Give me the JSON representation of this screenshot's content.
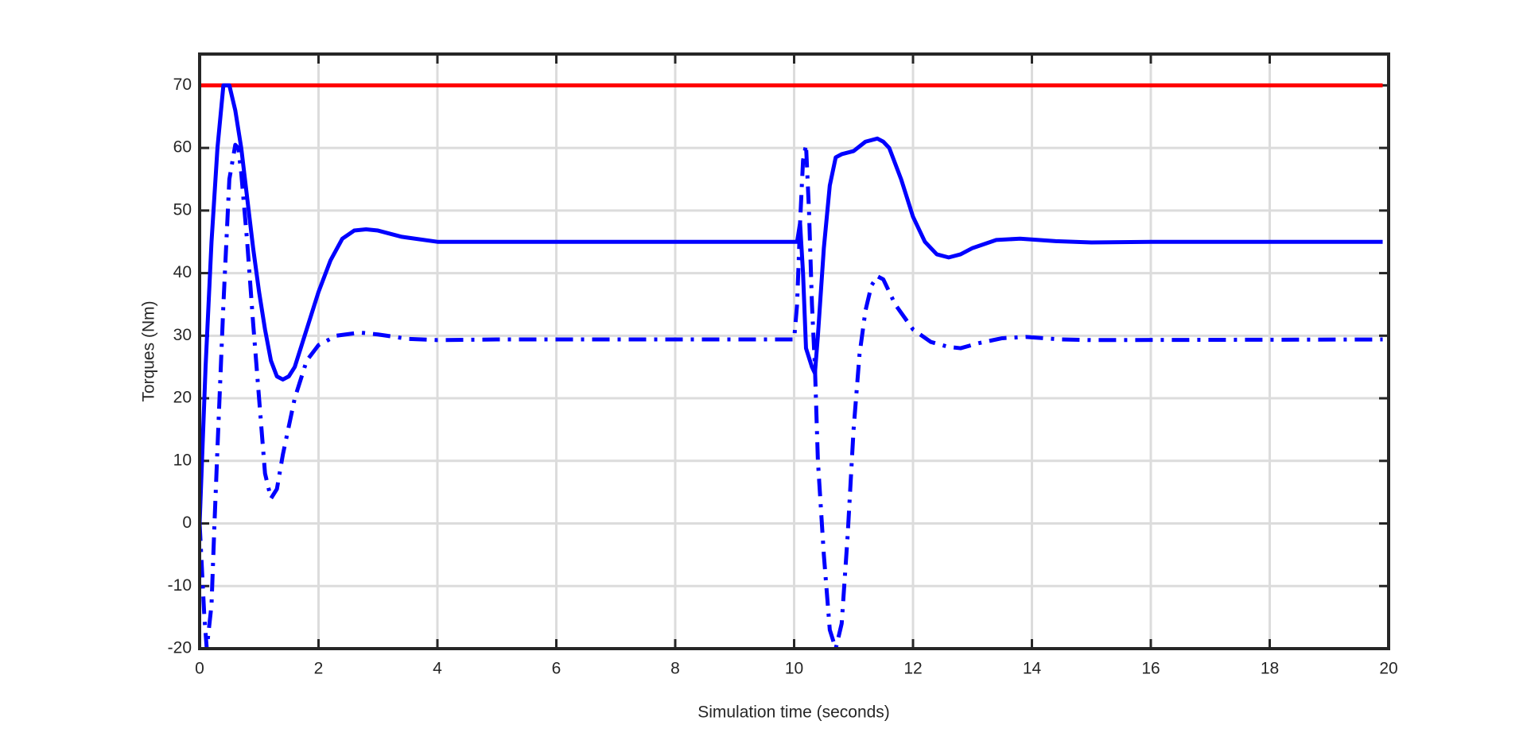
{
  "chart_data": {
    "type": "line",
    "xlabel": "Simulation time (seconds)",
    "ylabel": "Torques (Nm)",
    "xlim": [
      0,
      20
    ],
    "ylim": [
      -20,
      75
    ],
    "xticks": [
      0,
      2,
      4,
      6,
      8,
      10,
      12,
      14,
      16,
      18,
      20
    ],
    "yticks": [
      -20,
      -10,
      0,
      10,
      20,
      30,
      40,
      50,
      60,
      70
    ],
    "grid": true,
    "series": [
      {
        "color": "#ff0000",
        "style": "solid",
        "x": [
          0,
          19.9
        ],
        "values": [
          70,
          70
        ]
      },
      {
        "color": "#0000ff",
        "style": "solid",
        "x": [
          0,
          0.1,
          0.2,
          0.3,
          0.4,
          0.5,
          0.6,
          0.7,
          0.8,
          0.9,
          1.0,
          1.1,
          1.2,
          1.3,
          1.4,
          1.5,
          1.6,
          1.8,
          2.0,
          2.2,
          2.4,
          2.6,
          2.8,
          3.0,
          3.4,
          4.0,
          5,
          10,
          10.05,
          10.1,
          10.15,
          10.2,
          10.3,
          10.35,
          10.4,
          10.5,
          10.6,
          10.7,
          10.8,
          11.0,
          11.2,
          11.4,
          11.5,
          11.6,
          11.8,
          12.0,
          12.2,
          12.4,
          12.6,
          12.8,
          13.0,
          13.4,
          13.8,
          14.4,
          15,
          16,
          19.9
        ],
        "values": [
          0,
          25,
          45,
          60,
          70,
          70,
          66,
          60,
          52,
          44,
          37,
          31,
          26,
          23.5,
          23,
          23.5,
          25,
          31,
          37,
          42,
          45.5,
          46.8,
          47,
          46.8,
          45.8,
          45,
          45,
          45,
          45,
          48,
          40,
          28,
          25,
          24,
          30,
          44,
          54,
          58.5,
          59,
          59.5,
          61,
          61.5,
          61,
          60,
          55,
          49,
          45,
          43,
          42.5,
          43,
          44,
          45.3,
          45.5,
          45.1,
          44.9,
          45,
          45
        ]
      },
      {
        "color": "#0000ff",
        "style": "dash-dot",
        "x": [
          0,
          0.08,
          0.12,
          0.2,
          0.25,
          0.3,
          0.4,
          0.5,
          0.6,
          0.65,
          0.7,
          0.8,
          0.9,
          1.0,
          1.1,
          1.2,
          1.3,
          1.4,
          1.6,
          1.8,
          2.0,
          2.3,
          2.7,
          3.0,
          3.5,
          4,
          5,
          10,
          10.05,
          10.1,
          10.15,
          10.2,
          10.25,
          10.3,
          10.35,
          10.4,
          10.5,
          10.6,
          10.7,
          10.8,
          10.9,
          11.0,
          11.1,
          11.2,
          11.3,
          11.4,
          11.5,
          11.7,
          12.0,
          12.3,
          12.6,
          12.8,
          13.1,
          13.5,
          13.9,
          14.5,
          15,
          19.9
        ],
        "values": [
          0,
          -15,
          -20,
          -13,
          0,
          12,
          35,
          55,
          60.5,
          60,
          56,
          45,
          32,
          20,
          8,
          4,
          5.5,
          11,
          20,
          26,
          28.5,
          30,
          30.5,
          30.2,
          29.5,
          29.3,
          29.4,
          29.4,
          35,
          48,
          58,
          60.5,
          50,
          35,
          25,
          10,
          -5,
          -17,
          -20,
          -16,
          -2,
          15,
          27,
          34,
          38,
          39.5,
          39,
          35,
          31,
          29,
          28.2,
          28,
          28.8,
          29.6,
          29.8,
          29.4,
          29.3,
          29.4
        ]
      }
    ]
  }
}
